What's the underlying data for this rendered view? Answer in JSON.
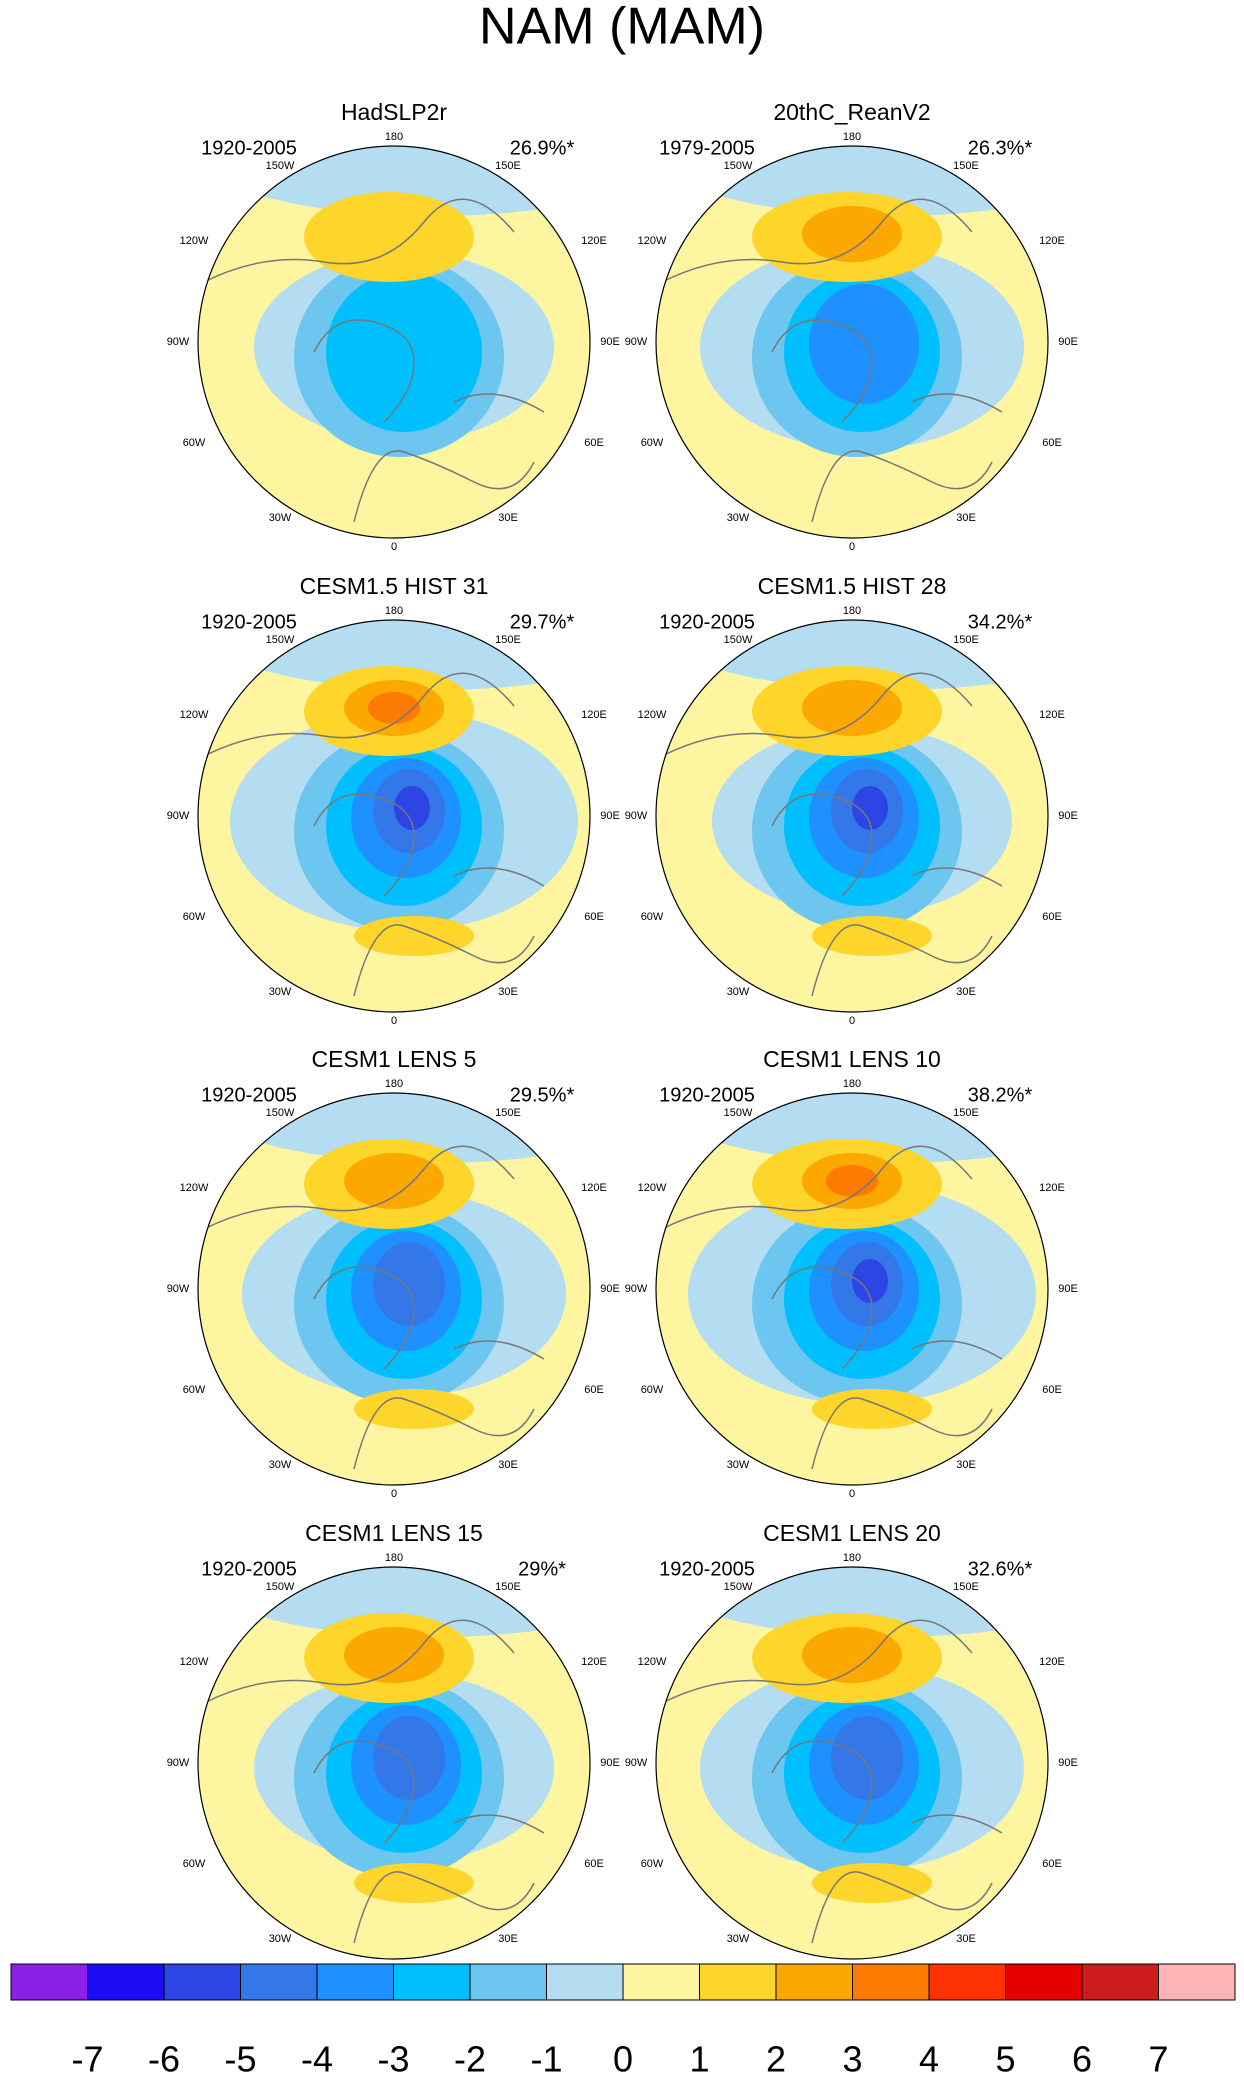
{
  "title": "NAM (MAM)",
  "panels": [
    {
      "title": "HadSLP2r",
      "period": "1920-2005",
      "variance": "26.9%*"
    },
    {
      "title": "20thC_ReanV2",
      "period": "1979-2005",
      "variance": "26.3%*"
    },
    {
      "title": "CESM1.5 HIST 31",
      "period": "1920-2005",
      "variance": "29.7%*"
    },
    {
      "title": "CESM1.5 HIST 28",
      "period": "1920-2005",
      "variance": "34.2%*"
    },
    {
      "title": "CESM1 LENS 5",
      "period": "1920-2005",
      "variance": "29.5%*"
    },
    {
      "title": "CESM1 LENS 10",
      "period": "1920-2005",
      "variance": "38.2%*"
    },
    {
      "title": "CESM1 LENS 15",
      "period": "1920-2005",
      "variance": "29%*"
    },
    {
      "title": "CESM1 LENS 20",
      "period": "1920-2005",
      "variance": "32.6%*"
    }
  ],
  "lon_labels": [
    "180",
    "150W",
    "150E",
    "120W",
    "120E",
    "90W",
    "90E",
    "60W",
    "60E",
    "30W",
    "30E",
    "0"
  ],
  "colorbar": {
    "colors": [
      "#8b1fe8",
      "#1c0df5",
      "#2e45e6",
      "#3477e8",
      "#1e90ff",
      "#00bfff",
      "#6cc6f0",
      "#b4ddf2",
      "#fdf5a0",
      "#fdd52b",
      "#fda800",
      "#fd7b00",
      "#fd3200",
      "#e60000",
      "#cc1c1c",
      "#fdb4b4"
    ],
    "labels": [
      -7,
      -6,
      -5,
      -4,
      -3,
      -2,
      -1,
      0,
      1,
      2,
      3,
      4,
      5,
      6,
      7
    ]
  }
}
